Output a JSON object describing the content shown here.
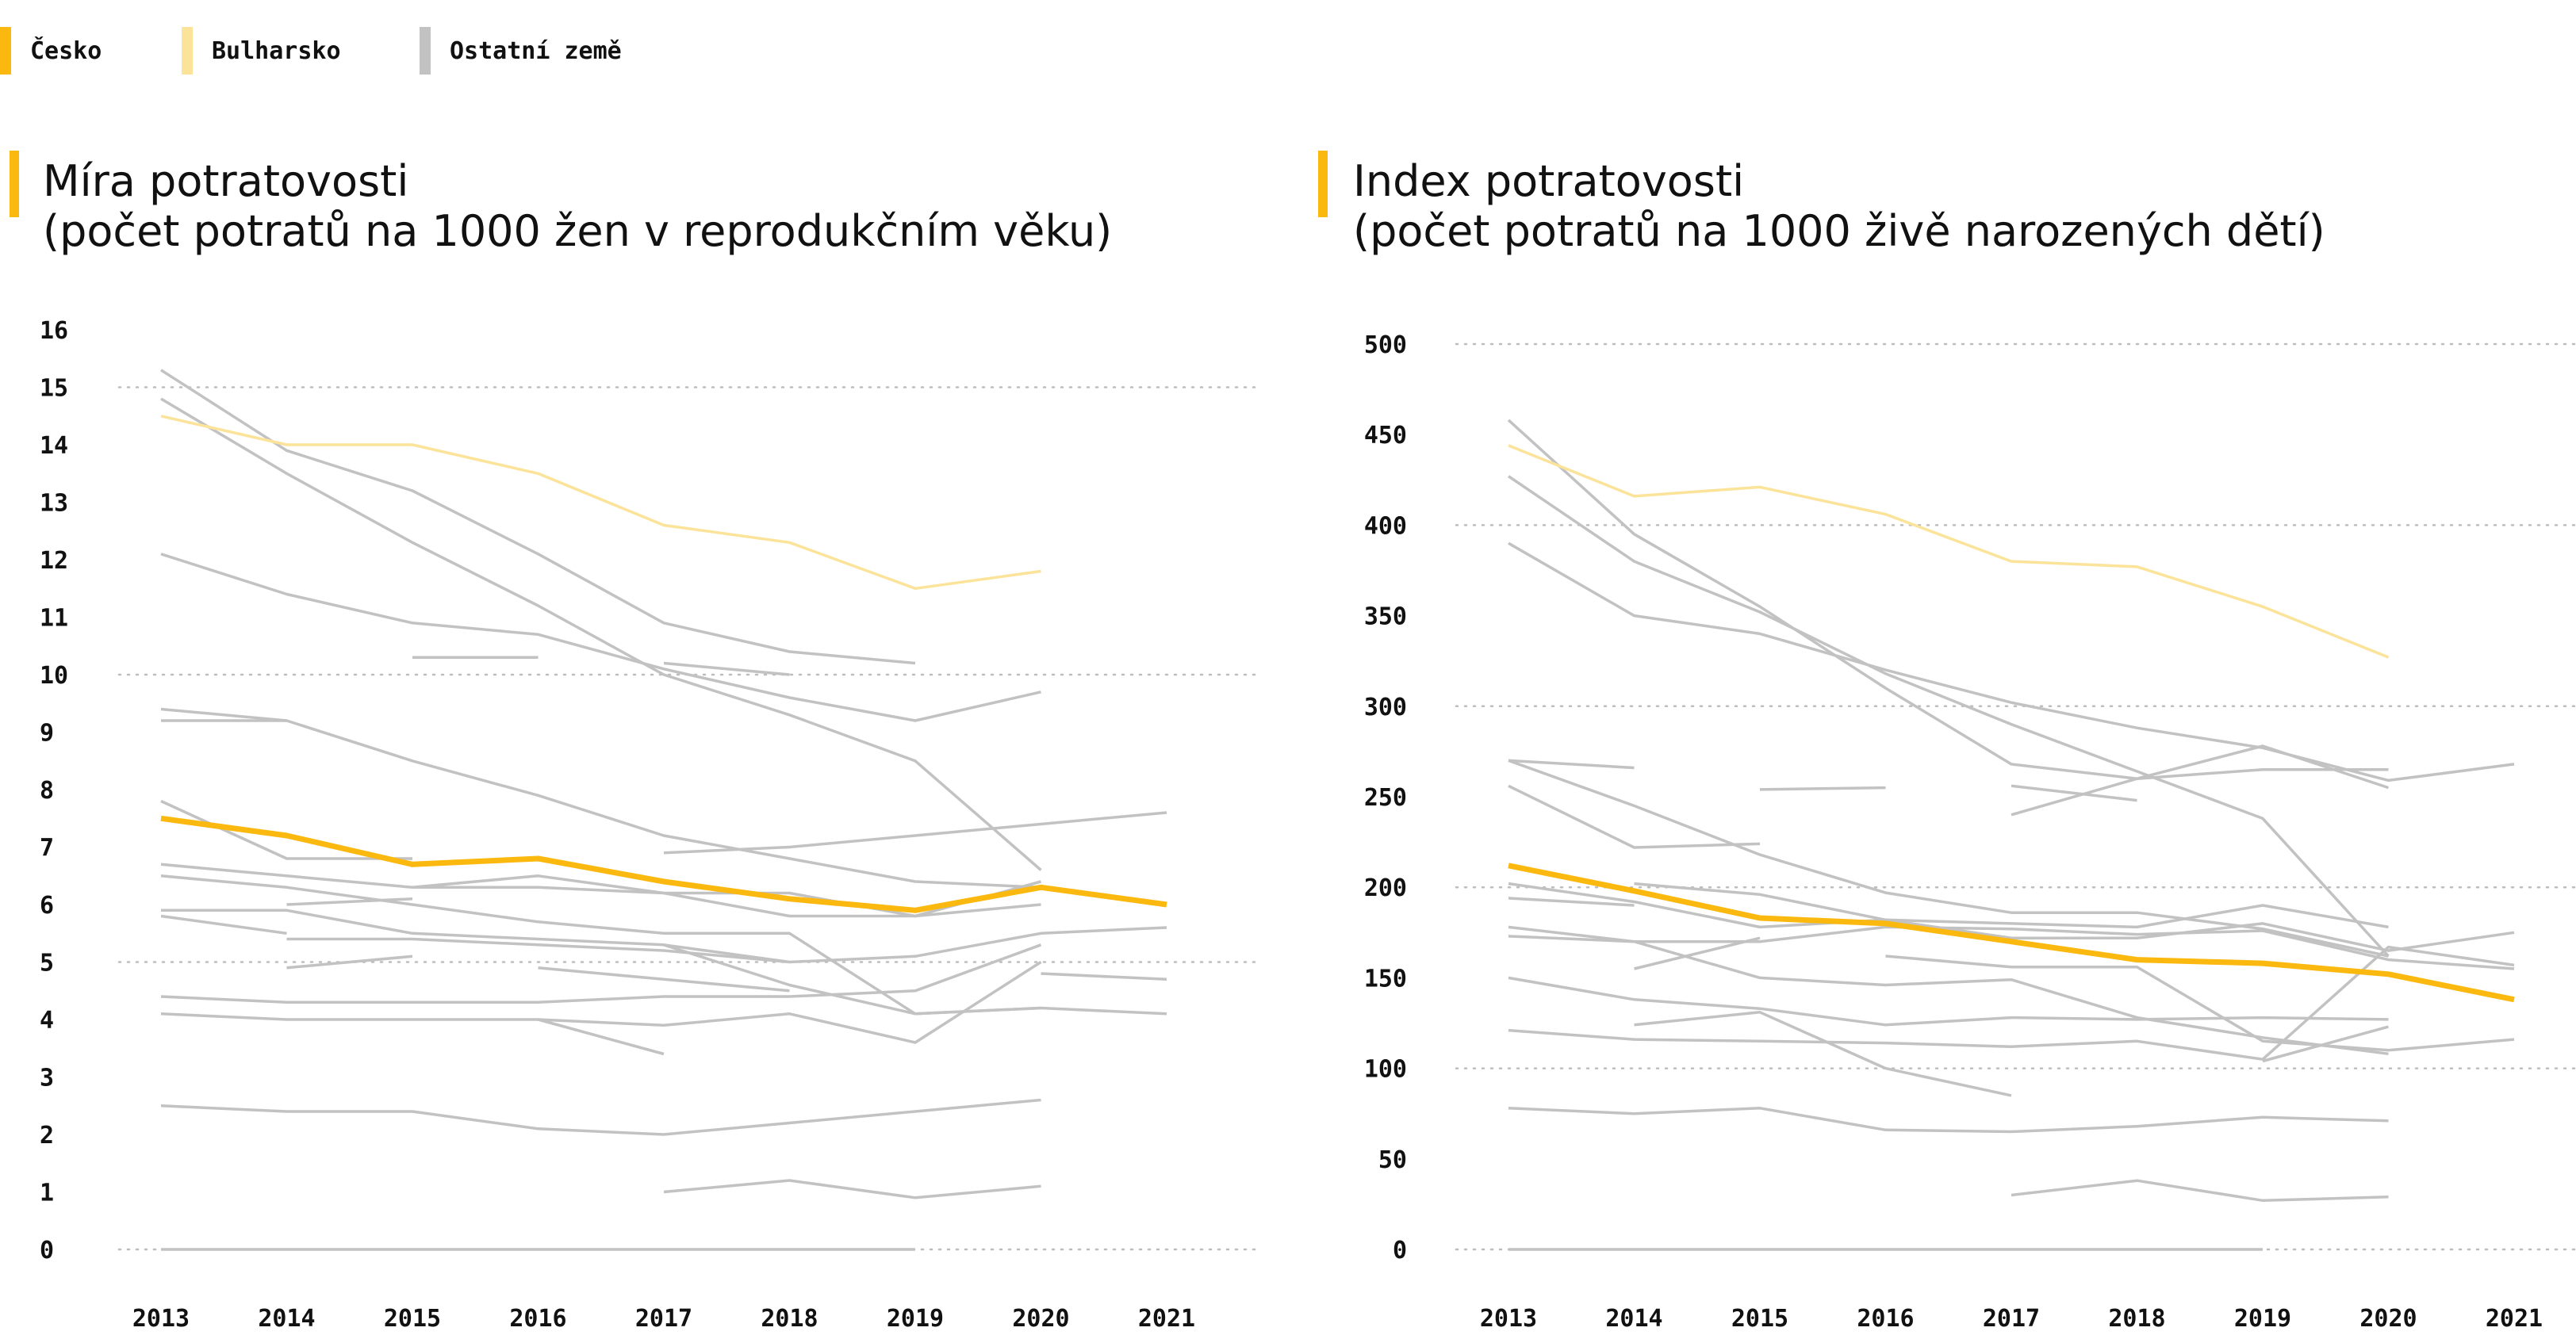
{
  "legend": [
    {
      "label": "Česko",
      "color": "#FBB80F"
    },
    {
      "label": "Bulharsko",
      "color": "#FBE39A"
    },
    {
      "label": "Ostatní země",
      "color": "#C2C2C2"
    }
  ],
  "colors": {
    "czech": "#FBB80F",
    "bulgaria": "#FBE39A",
    "other": "#C2C2C2",
    "grid": "#BDBDBD"
  },
  "chart_data": [
    {
      "type": "line",
      "title": "Míra potratovosti",
      "subtitle": "(počet potratů na 1000 žen v reprodukčním věku)",
      "x": [
        "2013",
        "2014",
        "2015",
        "2016",
        "2017",
        "2018",
        "2019",
        "2020",
        "2021"
      ],
      "y_ticks": [
        0,
        1,
        2,
        3,
        4,
        5,
        6,
        7,
        8,
        9,
        10,
        11,
        12,
        13,
        14,
        15,
        16
      ],
      "ylim": [
        0,
        16
      ],
      "gridlines": [
        0,
        5,
        10,
        15
      ],
      "series": [
        {
          "group": "other",
          "values": [
            15.3,
            13.9,
            13.2,
            12.1,
            10.9,
            10.4,
            10.2,
            null,
            null
          ]
        },
        {
          "group": "other",
          "values": [
            14.8,
            13.5,
            12.3,
            11.2,
            10.0,
            9.3,
            8.5,
            6.6,
            null
          ]
        },
        {
          "group": "other",
          "values": [
            12.1,
            11.4,
            10.9,
            10.7,
            10.1,
            9.6,
            9.2,
            9.7,
            null
          ]
        },
        {
          "group": "other",
          "values": [
            null,
            null,
            10.3,
            10.3,
            null,
            null,
            null,
            null,
            null
          ]
        },
        {
          "group": "other",
          "values": [
            null,
            null,
            null,
            null,
            10.2,
            10.0,
            null,
            null,
            null
          ]
        },
        {
          "group": "other",
          "values": [
            9.4,
            9.2,
            8.5,
            7.9,
            7.2,
            6.8,
            6.4,
            6.3,
            null
          ]
        },
        {
          "group": "other",
          "values": [
            9.2,
            9.2,
            null,
            null,
            null,
            null,
            null,
            null,
            null
          ]
        },
        {
          "group": "other",
          "values": [
            7.8,
            6.8,
            6.8,
            null,
            null,
            null,
            null,
            null,
            null
          ]
        },
        {
          "group": "other",
          "values": [
            null,
            null,
            null,
            null,
            6.9,
            7.0,
            7.2,
            7.4,
            7.6
          ]
        },
        {
          "group": "other",
          "values": [
            6.7,
            6.5,
            6.3,
            6.3,
            6.2,
            5.8,
            5.8,
            6.4,
            null
          ]
        },
        {
          "group": "other",
          "values": [
            6.5,
            6.3,
            6.0,
            5.7,
            5.5,
            5.5,
            4.1,
            null,
            null
          ]
        },
        {
          "group": "other",
          "values": [
            null,
            6.0,
            6.1,
            null,
            null,
            null,
            null,
            null,
            null
          ]
        },
        {
          "group": "other",
          "values": [
            null,
            null,
            6.3,
            6.5,
            6.2,
            6.2,
            5.8,
            6.0,
            null
          ]
        },
        {
          "group": "other",
          "values": [
            5.9,
            5.9,
            5.5,
            5.4,
            5.3,
            5.0,
            5.1,
            5.5,
            5.6
          ]
        },
        {
          "group": "other",
          "values": [
            5.8,
            5.5,
            null,
            null,
            null,
            null,
            null,
            null,
            null
          ]
        },
        {
          "group": "other",
          "values": [
            null,
            5.4,
            5.4,
            5.3,
            5.2,
            5.0,
            null,
            null,
            null
          ]
        },
        {
          "group": "other",
          "values": [
            null,
            4.9,
            5.1,
            null,
            null,
            null,
            null,
            null,
            null
          ]
        },
        {
          "group": "other",
          "values": [
            null,
            null,
            null,
            4.9,
            4.7,
            4.5,
            null,
            null,
            null
          ]
        },
        {
          "group": "other",
          "values": [
            null,
            null,
            null,
            null,
            5.3,
            4.6,
            4.1,
            4.2,
            null
          ]
        },
        {
          "group": "other",
          "values": [
            null,
            null,
            null,
            null,
            null,
            null,
            null,
            4.8,
            4.7
          ]
        },
        {
          "group": "other",
          "values": [
            4.4,
            4.3,
            4.3,
            4.3,
            4.4,
            4.4,
            4.5,
            5.3,
            null
          ]
        },
        {
          "group": "other",
          "values": [
            4.1,
            4.0,
            4.0,
            4.0,
            3.9,
            4.1,
            3.6,
            5.0,
            null
          ]
        },
        {
          "group": "other",
          "values": [
            null,
            null,
            null,
            4.0,
            3.4,
            null,
            null,
            null,
            null
          ]
        },
        {
          "group": "other",
          "values": [
            null,
            null,
            null,
            null,
            null,
            null,
            4.1,
            4.2,
            4.1
          ]
        },
        {
          "group": "other",
          "values": [
            2.5,
            2.4,
            2.4,
            2.1,
            2.0,
            2.2,
            2.4,
            2.6,
            null
          ]
        },
        {
          "group": "other",
          "values": [
            null,
            null,
            null,
            null,
            1.0,
            1.2,
            0.9,
            1.1,
            null
          ]
        },
        {
          "group": "other",
          "values": [
            0.0,
            0.0,
            0.0,
            0.0,
            0.0,
            0.0,
            0.0,
            null,
            null
          ]
        },
        {
          "group": "bulgaria",
          "name": "Bulharsko",
          "values": [
            14.5,
            14.0,
            14.0,
            13.5,
            12.6,
            12.3,
            11.5,
            11.8,
            null
          ]
        },
        {
          "group": "czech",
          "name": "Česko",
          "values": [
            7.5,
            7.2,
            6.7,
            6.8,
            6.4,
            6.1,
            5.9,
            6.3,
            6.0
          ]
        }
      ]
    },
    {
      "type": "line",
      "title": "Index potratovosti",
      "subtitle": "(počet potratů na 1000 živě narozených dětí)",
      "x": [
        "2013",
        "2014",
        "2015",
        "2016",
        "2017",
        "2018",
        "2019",
        "2020",
        "2021"
      ],
      "y_ticks": [
        0,
        50,
        100,
        150,
        200,
        250,
        300,
        350,
        400,
        450,
        500
      ],
      "ylim": [
        0,
        500
      ],
      "gridlines": [
        0,
        100,
        200,
        300,
        400,
        500
      ],
      "series": [
        {
          "group": "other",
          "values": [
            458,
            395,
            355,
            310,
            268,
            260,
            278,
            255,
            null
          ]
        },
        {
          "group": "other",
          "values": [
            427,
            380,
            352,
            318,
            290,
            264,
            238,
            162,
            null
          ]
        },
        {
          "group": "other",
          "values": [
            390,
            350,
            340,
            320,
            302,
            288,
            277,
            259,
            268
          ]
        },
        {
          "group": "other",
          "values": [
            270,
            266,
            null,
            null,
            null,
            null,
            null,
            null,
            null
          ]
        },
        {
          "group": "other",
          "values": [
            256,
            222,
            224,
            null,
            null,
            null,
            null,
            null,
            null
          ]
        },
        {
          "group": "other",
          "values": [
            null,
            null,
            254,
            255,
            null,
            null,
            null,
            null,
            null
          ]
        },
        {
          "group": "other",
          "values": [
            null,
            null,
            null,
            null,
            256,
            248,
            null,
            null,
            null
          ]
        },
        {
          "group": "other",
          "values": [
            null,
            null,
            null,
            null,
            240,
            260,
            265,
            265,
            null
          ]
        },
        {
          "group": "other",
          "values": [
            270,
            245,
            218,
            197,
            186,
            186,
            177,
            162,
            null
          ]
        },
        {
          "group": "other",
          "values": [
            202,
            192,
            178,
            182,
            172,
            172,
            180,
            165,
            175
          ]
        },
        {
          "group": "other",
          "values": [
            194,
            190,
            null,
            null,
            null,
            null,
            null,
            null,
            null
          ]
        },
        {
          "group": "other",
          "values": [
            null,
            202,
            196,
            182,
            180,
            178,
            190,
            178,
            null
          ]
        },
        {
          "group": "other",
          "values": [
            178,
            170,
            150,
            146,
            149,
            128,
            117,
            108,
            null
          ]
        },
        {
          "group": "other",
          "values": [
            173,
            170,
            170,
            178,
            177,
            174,
            176,
            160,
            155
          ]
        },
        {
          "group": "other",
          "values": [
            null,
            155,
            172,
            null,
            null,
            null,
            null,
            null,
            null
          ]
        },
        {
          "group": "other",
          "values": [
            150,
            138,
            133,
            124,
            128,
            127,
            128,
            127,
            null
          ]
        },
        {
          "group": "other",
          "values": [
            null,
            124,
            131,
            100,
            85,
            null,
            null,
            null,
            null
          ]
        },
        {
          "group": "other",
          "values": [
            null,
            null,
            null,
            162,
            156,
            156,
            115,
            110,
            116
          ]
        },
        {
          "group": "other",
          "values": [
            null,
            null,
            null,
            null,
            null,
            null,
            104,
            123,
            null
          ]
        },
        {
          "group": "other",
          "values": [
            121,
            116,
            115,
            114,
            112,
            115,
            105,
            167,
            157
          ]
        },
        {
          "group": "other",
          "values": [
            78,
            75,
            78,
            66,
            65,
            68,
            73,
            71,
            null
          ]
        },
        {
          "group": "other",
          "values": [
            null,
            null,
            null,
            null,
            30,
            38,
            27,
            29,
            null
          ]
        },
        {
          "group": "other",
          "values": [
            0,
            0,
            0,
            0,
            0,
            0,
            0,
            null,
            null
          ]
        },
        {
          "group": "bulgaria",
          "name": "Bulharsko",
          "values": [
            444,
            416,
            421,
            406,
            380,
            377,
            355,
            327,
            null
          ]
        },
        {
          "group": "czech",
          "name": "Česko",
          "values": [
            212,
            198,
            183,
            180,
            170,
            160,
            158,
            152,
            138
          ]
        }
      ]
    }
  ]
}
